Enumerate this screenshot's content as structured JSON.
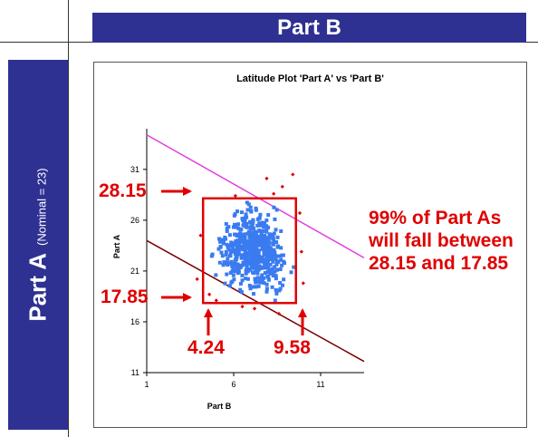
{
  "header": {
    "part_b_label": "Part B"
  },
  "sidebar": {
    "part_a_label": "Part A",
    "nominal_note": "(Nominal = 23)"
  },
  "annotations": {
    "upper_limit": "28.15",
    "lower_limit": "17.85",
    "x_low": "4.24",
    "x_high": "9.58",
    "note": [
      "99% of Part As",
      "will fall between",
      "28.15 and 17.85"
    ]
  },
  "colors": {
    "header_bg": "#2E3192",
    "scatter": "#3A7BF0",
    "outlier": "#E00000",
    "upper_line": "#E040E0",
    "lower_line": "#7A0000",
    "box": "#E00000"
  },
  "chart_data": {
    "type": "scatter",
    "title": "Latitude Plot 'Part A' vs 'Part B'",
    "xlabel": "Part B",
    "ylabel": "Part A",
    "xlim": [
      1,
      13.5
    ],
    "ylim": [
      11,
      35
    ],
    "xticks": [
      1,
      6,
      11
    ],
    "yticks": [
      11,
      16,
      21,
      26,
      31
    ],
    "grid": false,
    "lines": [
      {
        "x": [
          1,
          13.5
        ],
        "y": [
          34.4,
          22.3
        ],
        "color": "#E040E0"
      },
      {
        "x": [
          1,
          13.5
        ],
        "y": [
          24.0,
          12.1
        ],
        "color": "#7A0000"
      }
    ],
    "box": {
      "x": [
        4.24,
        9.58
      ],
      "y": [
        17.85,
        28.15
      ]
    },
    "scatter_center": [
      7.1,
      23.0
    ],
    "scatter_spread": [
      1.2,
      2.3
    ],
    "outliers": [
      [
        7.9,
        30.1
      ],
      [
        8.3,
        28.6
      ],
      [
        9.4,
        30.5
      ],
      [
        6.1,
        28.4
      ],
      [
        4.1,
        24.5
      ],
      [
        3.9,
        20.2
      ],
      [
        4.6,
        18.7
      ],
      [
        5.0,
        18.1
      ],
      [
        9.8,
        26.7
      ],
      [
        9.9,
        22.9
      ],
      [
        7.2,
        17.3
      ],
      [
        8.6,
        16.8
      ],
      [
        6.5,
        17.5
      ],
      [
        10.0,
        19.8
      ],
      [
        8.8,
        29.3
      ]
    ]
  }
}
